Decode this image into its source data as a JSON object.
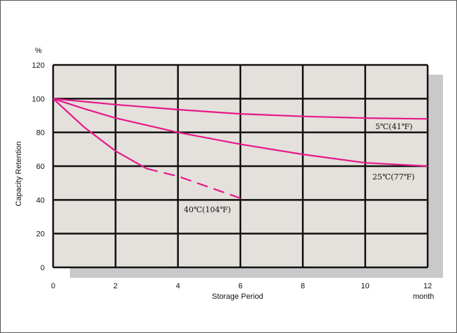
{
  "chart_data": {
    "type": "line",
    "title": "",
    "xlabel": "Storage Period",
    "x_unit": "month",
    "ylabel": "Capacity Retention",
    "y_unit": "%",
    "xlim": [
      0,
      12
    ],
    "ylim": [
      0,
      120
    ],
    "x_ticks": [
      "0",
      "2",
      "4",
      "6",
      "8",
      "10",
      "12"
    ],
    "y_ticks": [
      "0",
      "20",
      "40",
      "60",
      "80",
      "100",
      "120"
    ],
    "grid": true,
    "colors": {
      "plot_bg": "#e4e0db",
      "shadow": "#c9c9c9",
      "grid": "#111111",
      "line": "#e6198a"
    },
    "series": [
      {
        "name": "5℃(41℉)",
        "x": [
          0,
          2,
          4,
          6,
          8,
          10,
          12
        ],
        "y": [
          100,
          96.5,
          93.5,
          91,
          89.5,
          88.5,
          88
        ]
      },
      {
        "name": "25℃(77℉)",
        "x": [
          0,
          1,
          2,
          4,
          6,
          8,
          10,
          12
        ],
        "y": [
          100,
          94,
          88.5,
          80,
          73,
          67,
          62,
          60
        ]
      },
      {
        "name": "40℃(104℉)",
        "x": [
          0,
          1,
          2,
          3,
          4,
          5,
          6
        ],
        "y": [
          100,
          83,
          69,
          58.5,
          54,
          47.5,
          41
        ],
        "dashed_from_x": 3
      }
    ]
  }
}
